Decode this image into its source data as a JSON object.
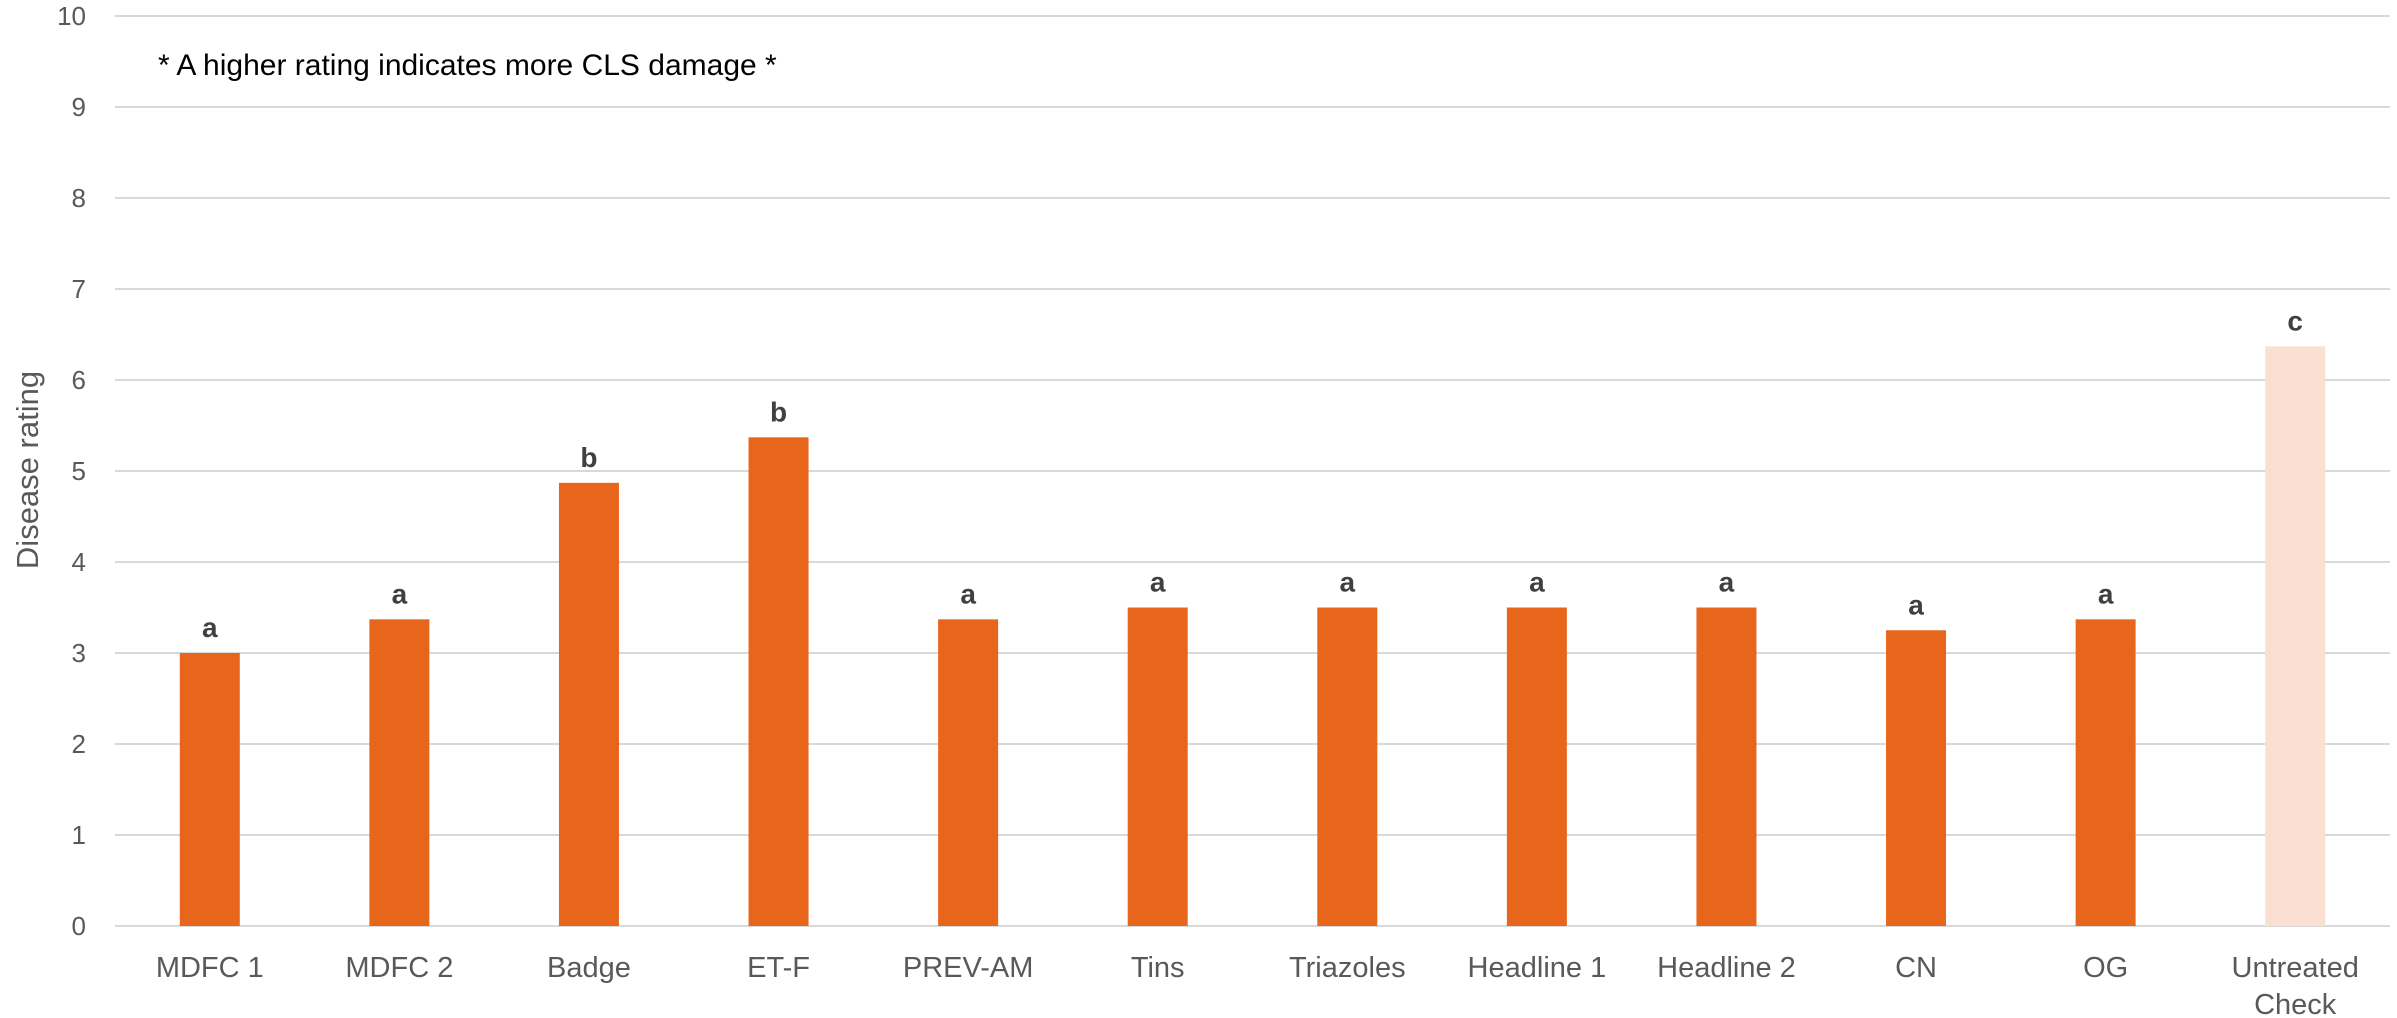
{
  "chart_data": {
    "type": "bar",
    "categories": [
      [
        "MDFC 1"
      ],
      [
        "MDFC 2"
      ],
      [
        "Badge"
      ],
      [
        "ET-F"
      ],
      [
        "PREV-AM"
      ],
      [
        "Tins"
      ],
      [
        "Triazoles"
      ],
      [
        "Headline 1"
      ],
      [
        "Headline 2"
      ],
      [
        "CN"
      ],
      [
        "OG"
      ],
      [
        "Untreated",
        "Check"
      ]
    ],
    "values": [
      3.0,
      3.37,
      4.87,
      5.37,
      3.37,
      3.5,
      3.5,
      3.5,
      3.5,
      3.25,
      3.37,
      6.37
    ],
    "significance_letters": [
      "a",
      "a",
      "b",
      "b",
      "a",
      "a",
      "a",
      "a",
      "a",
      "a",
      "a",
      "c"
    ],
    "bar_colors": [
      "#e8661c",
      "#e8661c",
      "#e8661c",
      "#e8661c",
      "#e8661c",
      "#e8661c",
      "#e8661c",
      "#e8661c",
      "#e8661c",
      "#e8661c",
      "#e8661c",
      "#fbdfd0"
    ],
    "ylabel": "Disease rating",
    "xlabel": "",
    "ylim": [
      0,
      10
    ],
    "yticks": [
      0,
      1,
      2,
      3,
      4,
      5,
      6,
      7,
      8,
      9,
      10
    ],
    "annotation": "* A higher rating indicates more CLS damage *",
    "grid": true,
    "legend": "none"
  }
}
